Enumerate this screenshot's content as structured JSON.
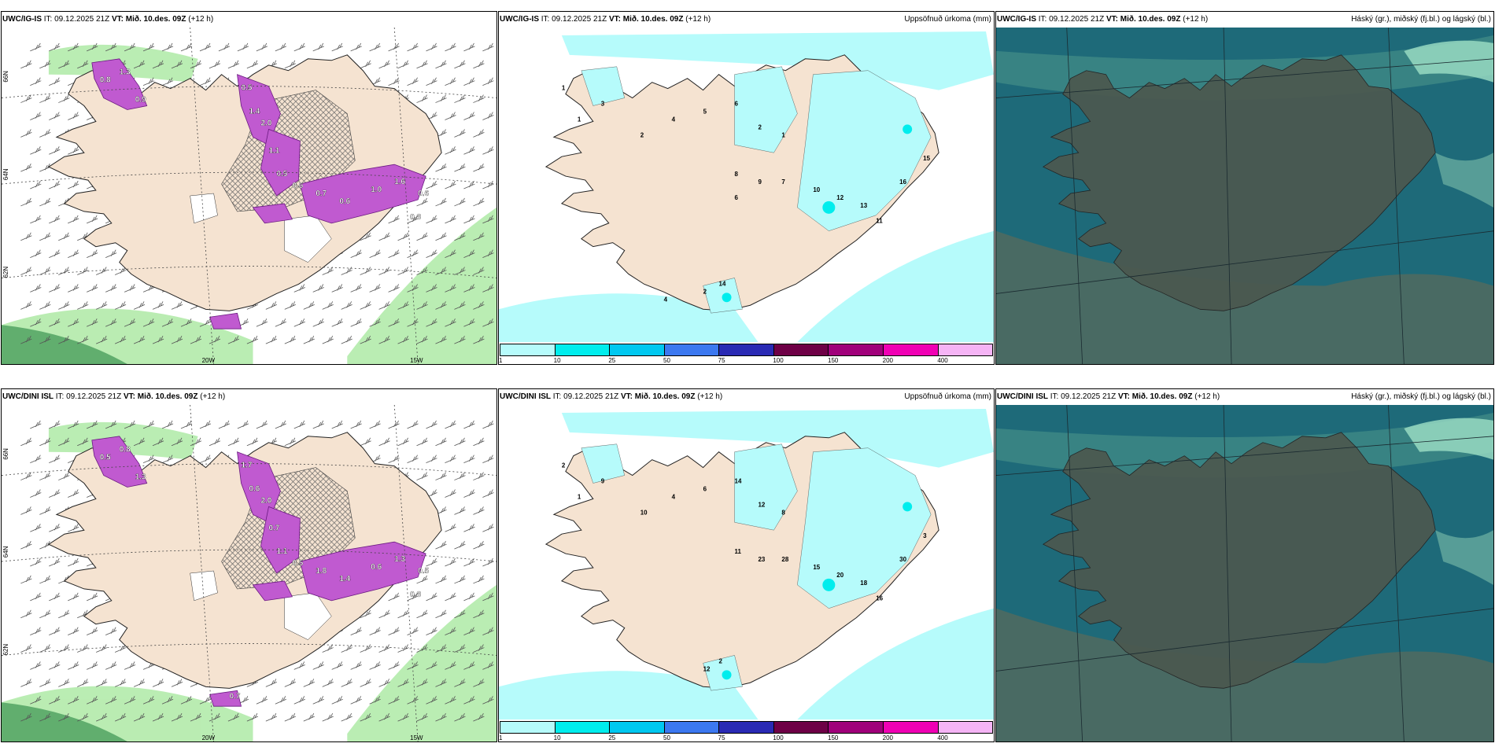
{
  "rows": [
    {
      "id": "top",
      "panels": [
        {
          "type": "wind",
          "title_model": "UWC/IG-IS",
          "title_it": "IT: 09.12.2025 21Z",
          "title_vt_label": "VT:",
          "title_vt": "Mið. 10.des. 09Z",
          "title_lead": "(+12 h)",
          "title_right": "",
          "lat_labels": [
            "66N",
            "64N",
            "62N"
          ],
          "lon_labels": [
            "20W",
            "15W"
          ],
          "values": [
            "0.8",
            "1.3",
            "0.9",
            "0.5",
            "1.4",
            "2.0",
            "1.1",
            "0.5",
            "0.6",
            "0.7",
            "0.6",
            "1.0",
            "1.6",
            "0.6",
            "0.8"
          ]
        },
        {
          "type": "precip",
          "title_model": "UWC/IG-IS",
          "title_it": "IT: 09.12.2025 21Z",
          "title_vt_label": "VT:",
          "title_vt": "Mið. 10.des. 09Z",
          "title_lead": "(+12 h)",
          "title_right": "Uppsöfnuð úrkoma (mm)",
          "values": [
            "1",
            "1",
            "3",
            "2",
            "4",
            "5",
            "6",
            "2",
            "1",
            "8",
            "9",
            "7",
            "10",
            "12",
            "13",
            "11",
            "16",
            "15",
            "14",
            "2",
            "4",
            "6"
          ]
        },
        {
          "type": "cloud",
          "title_model": "UWC/IG-IS",
          "title_it": "IT: 09.12.2025 21Z",
          "title_vt_label": "VT:",
          "title_vt": "Mið. 10.des. 09Z",
          "title_lead": "(+12 h)",
          "title_right": "Háský (gr.), miðský (fj.bl.) og lágský (bl.)"
        }
      ]
    },
    {
      "id": "bottom",
      "panels": [
        {
          "type": "wind",
          "title_model": "UWC/DINI ISL",
          "title_it": "IT: 09.12.2025 21Z",
          "title_vt_label": "VT:",
          "title_vt": "Mið. 10.des. 09Z",
          "title_lead": "(+12 h)",
          "title_right": "",
          "lat_labels": [
            "66N",
            "64N",
            "62N"
          ],
          "lon_labels": [
            "20W",
            "15W"
          ],
          "values": [
            "0.5",
            "0.8",
            "1.3",
            "1.7",
            "0.6",
            "2.0",
            "0.7",
            "1.1",
            "0.5",
            "1.8",
            "1.4",
            "0.6",
            "1.3",
            "0.5",
            "0.8",
            "0.7"
          ]
        },
        {
          "type": "precip",
          "title_model": "UWC/DINI ISL",
          "title_it": "IT: 09.12.2025 21Z",
          "title_vt_label": "VT:",
          "title_vt": "Mið. 10.des. 09Z",
          "title_lead": "(+12 h)",
          "title_right": "Uppsöfnuð úrkoma (mm)",
          "values": [
            "2",
            "1",
            "9",
            "10",
            "4",
            "6",
            "14",
            "12",
            "8",
            "11",
            "23",
            "28",
            "15",
            "20",
            "18",
            "16",
            "30",
            "3",
            "2",
            "12"
          ]
        },
        {
          "type": "cloud",
          "title_model": "UWC/DINI ISL",
          "title_it": "IT: 09.12.2025 21Z",
          "title_vt_label": "VT:",
          "title_vt": "Mið. 10.des. 09Z",
          "title_lead": "(+12 h)",
          "title_right": "Háský (gr.), miðský (fj.bl.) og lágský (bl.)"
        }
      ]
    }
  ],
  "colorbar": {
    "colors": [
      "#b6fbfb",
      "#00eded",
      "#00c8f0",
      "#3c78f0",
      "#2a2ab4",
      "#6e0046",
      "#a0007a",
      "#f000b4",
      "#f5b4f5"
    ],
    "ticks": [
      "1",
      "10",
      "25",
      "50",
      "75",
      "100",
      "150",
      "200",
      "400"
    ]
  },
  "colors": {
    "land": "#f5e3d1",
    "sea": "#ffffff",
    "precip_light": "#b6fbfb",
    "precip_mid": "#00eded",
    "snow_magenta": "#c05ad0",
    "rain_green": "#a9e8a0",
    "cloud_sea": "#1e6a79",
    "cloud_land": "#4b5950"
  }
}
